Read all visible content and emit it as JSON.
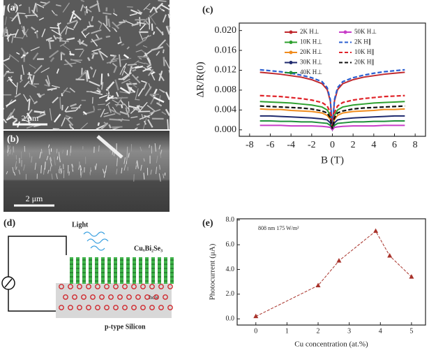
{
  "panels": {
    "a": "(a)",
    "b": "(b)",
    "d": "(d)"
  },
  "sem": {
    "scale_a": "2 μm",
    "scale_b": "2 μm"
  },
  "diagram": {
    "light": "Light",
    "film": "CuₓBi₂Se₃",
    "hole": "hole",
    "substrate": "p-type Silicon"
  },
  "chart_data": [
    {
      "type": "line",
      "title": "(c)",
      "xlabel": "B (T)",
      "ylabel": "ΔR/R(0)",
      "x": [
        -7,
        -6,
        -5,
        -4,
        -3,
        -2,
        -1,
        -0.5,
        -0.2,
        0,
        0.2,
        0.5,
        1,
        2,
        3,
        4,
        5,
        6,
        7
      ],
      "xlim": [
        -9,
        9
      ],
      "xticks": [
        -8,
        -6,
        -4,
        -2,
        0,
        2,
        4,
        6,
        8
      ],
      "ylim": [
        -0.0013,
        0.0215
      ],
      "yticks": [
        {
          "value": 0,
          "label": "0.000"
        },
        {
          "value": 0.004,
          "label": "0.004"
        },
        {
          "value": 0.008,
          "label": "0.008"
        },
        {
          "value": 0.012,
          "label": "0.012"
        },
        {
          "value": 0.016,
          "label": "0.016"
        },
        {
          "value": 0.02,
          "label": "0.020"
        }
      ],
      "series": [
        {
          "name": "2K H⊥",
          "color": "#c0282d",
          "linestyle": "solid",
          "values": [
            0.0116,
            0.0114,
            0.0112,
            0.0109,
            0.0106,
            0.0101,
            0.0093,
            0.0081,
            0.0058,
            0.0006,
            0.0058,
            0.0081,
            0.0093,
            0.0101,
            0.0106,
            0.0109,
            0.0112,
            0.0114,
            0.0116
          ]
        },
        {
          "name": "10K H⊥",
          "color": "#2ea02e",
          "linestyle": "solid",
          "values": [
            0.0057,
            0.0056,
            0.0055,
            0.0054,
            0.0052,
            0.005,
            0.0046,
            0.004,
            0.0029,
            0.0003,
            0.0029,
            0.004,
            0.0046,
            0.005,
            0.0052,
            0.0054,
            0.0055,
            0.0056,
            0.0057
          ]
        },
        {
          "name": "20K H⊥",
          "color": "#f08c1e",
          "linestyle": "solid",
          "values": [
            0.0042,
            0.0041,
            0.0041,
            0.0039,
            0.0038,
            0.0037,
            0.0034,
            0.0029,
            0.0021,
            0.0002,
            0.0021,
            0.0029,
            0.0034,
            0.0037,
            0.0038,
            0.0039,
            0.0041,
            0.0041,
            0.0042
          ]
        },
        {
          "name": "30K H⊥",
          "color": "#1f2a6e",
          "linestyle": "solid",
          "values": [
            0.0028,
            0.0028,
            0.0027,
            0.0026,
            0.0025,
            0.0024,
            0.0022,
            0.002,
            0.0014,
            0.0001,
            0.0014,
            0.002,
            0.0022,
            0.0024,
            0.0025,
            0.0026,
            0.0027,
            0.0028,
            0.0028
          ]
        },
        {
          "name": "40K H⊥",
          "color": "#1f8f3a",
          "linestyle": "solid",
          "values": [
            0.0018,
            0.0018,
            0.0017,
            0.0017,
            0.0016,
            0.0016,
            0.0014,
            0.0013,
            0.0009,
            0.0001,
            0.0009,
            0.0013,
            0.0014,
            0.0016,
            0.0016,
            0.0017,
            0.0017,
            0.0018,
            0.0018
          ]
        },
        {
          "name": "50K H⊥",
          "color": "#c83cc8",
          "linestyle": "solid",
          "values": [
            0.0009,
            0.0009,
            0.0009,
            0.0008,
            0.0008,
            0.0008,
            0.0007,
            0.0006,
            0.0005,
            0,
            0.0005,
            0.0006,
            0.0007,
            0.0008,
            0.0008,
            0.0008,
            0.0009,
            0.0009,
            0.0009
          ]
        },
        {
          "name": "2K H∥",
          "color": "#2b5fd0",
          "linestyle": "dashed",
          "values": [
            0.0121,
            0.0119,
            0.0117,
            0.0114,
            0.011,
            0.0105,
            0.0097,
            0.0085,
            0.0061,
            0.0006,
            0.0061,
            0.0085,
            0.0097,
            0.0105,
            0.011,
            0.0114,
            0.0117,
            0.0119,
            0.0121
          ]
        },
        {
          "name": "10K H∥",
          "color": "#e0242a",
          "linestyle": "dashed",
          "values": [
            0.0069,
            0.0068,
            0.0067,
            0.0065,
            0.0063,
            0.006,
            0.0055,
            0.0048,
            0.0035,
            0.0003,
            0.0035,
            0.0048,
            0.0055,
            0.006,
            0.0063,
            0.0065,
            0.0067,
            0.0068,
            0.0069
          ]
        },
        {
          "name": "20K H∥",
          "color": "#111111",
          "linestyle": "dashed",
          "values": [
            0.0048,
            0.0047,
            0.0046,
            0.0045,
            0.0044,
            0.0042,
            0.0038,
            0.0034,
            0.0024,
            0.0002,
            0.0024,
            0.0034,
            0.0038,
            0.0042,
            0.0044,
            0.0045,
            0.0046,
            0.0047,
            0.0048
          ]
        }
      ]
    },
    {
      "type": "line",
      "title": "(e)",
      "xlabel": "Cu concentration (at.%)",
      "ylabel": "Photocurrent (μA)",
      "annotation": "808 nm   175 W/m²",
      "x": [
        0,
        2,
        2.67,
        3.85,
        4.3,
        5
      ],
      "values": [
        0.2,
        2.7,
        4.7,
        7.1,
        5.1,
        3.4
      ],
      "color": "#a8322a",
      "linestyle": "dashed",
      "marker": "triangle",
      "xlim": [
        -0.6,
        5.45
      ],
      "xticks": [
        0,
        1,
        2,
        3,
        4,
        5
      ],
      "ylim": [
        -0.5,
        8.1
      ],
      "yticks": [
        {
          "value": 0,
          "label": "0.0"
        },
        {
          "value": 2,
          "label": "2.0"
        },
        {
          "value": 4,
          "label": "4.0"
        },
        {
          "value": 6,
          "label": "6.0"
        },
        {
          "value": 8,
          "label": "8.0"
        }
      ]
    }
  ]
}
